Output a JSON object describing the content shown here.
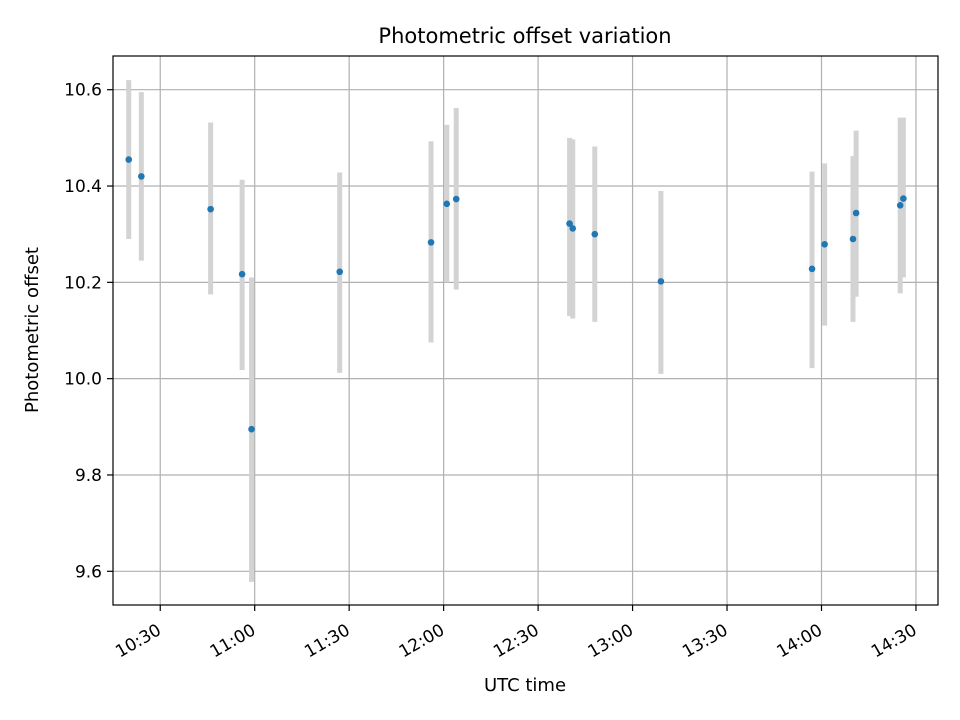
{
  "chart_data": {
    "type": "scatter",
    "title": "Photometric offset variation",
    "xlabel": "UTC time",
    "ylabel": "Photometric offset",
    "x_ticks": [
      "10:30",
      "11:00",
      "11:30",
      "12:00",
      "12:30",
      "13:00",
      "13:30",
      "14:00",
      "14:30"
    ],
    "y_ticks": [
      "9.6",
      "9.8",
      "10.0",
      "10.2",
      "10.4",
      "10.6"
    ],
    "xlim": [
      "10:15",
      "14:37"
    ],
    "ylim": [
      9.53,
      10.67
    ],
    "grid": true,
    "colors": {
      "point": "#1f77b4",
      "errorbar": "#d3d3d3",
      "grid": "#b0b0b0"
    },
    "series": [
      {
        "points": [
          {
            "x": "10:20",
            "y": 10.455,
            "ylow": 10.29,
            "yhigh": 10.62
          },
          {
            "x": "10:24",
            "y": 10.42,
            "ylow": 10.245,
            "yhigh": 10.595
          },
          {
            "x": "10:46",
            "y": 10.352,
            "ylow": 10.175,
            "yhigh": 10.532
          },
          {
            "x": "10:56",
            "y": 10.217,
            "ylow": 10.018,
            "yhigh": 10.413
          },
          {
            "x": "10:59",
            "y": 9.895,
            "ylow": 9.578,
            "yhigh": 10.21
          },
          {
            "x": "11:27",
            "y": 10.222,
            "ylow": 10.012,
            "yhigh": 10.428
          },
          {
            "x": "11:56",
            "y": 10.283,
            "ylow": 10.075,
            "yhigh": 10.493
          },
          {
            "x": "12:01",
            "y": 10.363,
            "ylow": 10.2,
            "yhigh": 10.527
          },
          {
            "x": "12:04",
            "y": 10.373,
            "ylow": 10.185,
            "yhigh": 10.562
          },
          {
            "x": "12:40",
            "y": 10.322,
            "ylow": 10.13,
            "yhigh": 10.5
          },
          {
            "x": "12:41",
            "y": 10.312,
            "ylow": 10.125,
            "yhigh": 10.497
          },
          {
            "x": "12:48",
            "y": 10.3,
            "ylow": 10.118,
            "yhigh": 10.482
          },
          {
            "x": "13:09",
            "y": 10.202,
            "ylow": 10.01,
            "yhigh": 10.39
          },
          {
            "x": "13:57",
            "y": 10.228,
            "ylow": 10.022,
            "yhigh": 10.43
          },
          {
            "x": "14:01",
            "y": 10.279,
            "ylow": 10.11,
            "yhigh": 10.447
          },
          {
            "x": "14:10",
            "y": 10.29,
            "ylow": 10.118,
            "yhigh": 10.462
          },
          {
            "x": "14:11",
            "y": 10.344,
            "ylow": 10.17,
            "yhigh": 10.515
          },
          {
            "x": "14:25",
            "y": 10.36,
            "ylow": 10.177,
            "yhigh": 10.542
          },
          {
            "x": "14:26",
            "y": 10.374,
            "ylow": 10.21,
            "yhigh": 10.542
          }
        ]
      }
    ]
  }
}
